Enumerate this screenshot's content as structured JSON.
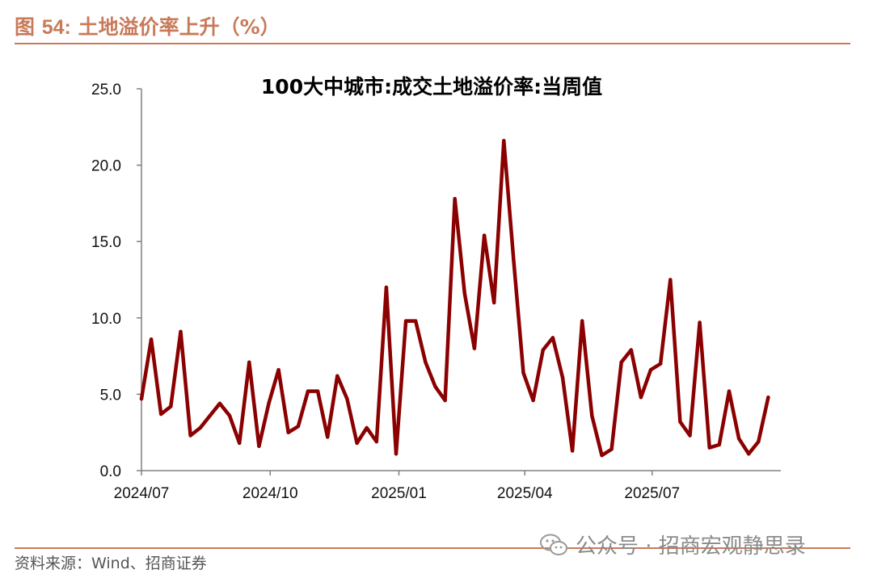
{
  "figure": {
    "label_prefix": "图 ",
    "label_number": "54:",
    "caption": " 土地溢价率上升（%）",
    "source": "资料来源：Wind、招商证券",
    "watermark": "公众号 · 招商宏观静思录",
    "watermark_icon": "wechat-icon"
  },
  "chart_data": {
    "type": "line",
    "title": "100大中城市:成交土地溢价率:当周值",
    "xlabel": "",
    "ylabel": "",
    "ylim": [
      0,
      25
    ],
    "yticks": [
      "0.0",
      "5.0",
      "10.0",
      "15.0",
      "20.0",
      "25.0"
    ],
    "xticks": [
      "2024/07",
      "2024/10",
      "2025/01",
      "2025/04",
      "2025/07"
    ],
    "x_range": [
      "2024-07-01",
      "2025-10-01"
    ],
    "grid": false,
    "legend": "none",
    "line_color": "#8b0000",
    "series": [
      {
        "x": [
          "2024-07-01",
          "2024-07-08",
          "2024-07-15",
          "2024-07-22",
          "2024-07-29",
          "2024-08-05",
          "2024-08-12",
          "2024-08-19",
          "2024-08-26",
          "2024-09-02",
          "2024-09-09",
          "2024-09-16",
          "2024-09-23",
          "2024-09-30",
          "2024-10-07",
          "2024-10-14",
          "2024-10-21",
          "2024-10-28",
          "2024-11-04",
          "2024-11-11",
          "2024-11-18",
          "2024-11-25",
          "2024-12-02",
          "2024-12-09",
          "2024-12-16",
          "2024-12-23",
          "2024-12-30",
          "2025-01-06",
          "2025-01-13",
          "2025-01-20",
          "2025-01-27",
          "2025-02-03",
          "2025-02-10",
          "2025-02-17",
          "2025-02-24",
          "2025-03-03",
          "2025-03-10",
          "2025-03-17",
          "2025-03-24",
          "2025-03-31",
          "2025-04-07",
          "2025-04-14",
          "2025-04-21",
          "2025-04-28",
          "2025-05-05",
          "2025-05-12",
          "2025-05-19",
          "2025-05-26",
          "2025-06-02",
          "2025-06-09",
          "2025-06-16",
          "2025-06-23",
          "2025-06-30",
          "2025-07-07",
          "2025-07-14",
          "2025-07-21",
          "2025-07-28",
          "2025-08-04",
          "2025-08-11",
          "2025-08-18",
          "2025-08-25",
          "2025-09-01",
          "2025-09-08",
          "2025-09-15",
          "2025-09-22"
        ],
        "values": [
          4.7,
          8.6,
          3.7,
          4.2,
          9.1,
          2.3,
          2.8,
          3.6,
          4.4,
          3.6,
          1.8,
          7.1,
          1.6,
          4.4,
          6.6,
          2.5,
          2.9,
          5.2,
          5.2,
          2.2,
          6.2,
          4.7,
          1.8,
          2.8,
          1.9,
          12.0,
          1.1,
          9.8,
          9.8,
          7.1,
          5.5,
          4.6,
          17.8,
          11.6,
          8.0,
          15.4,
          11.0,
          21.6,
          13.8,
          6.4,
          4.6,
          7.9,
          8.7,
          6.1,
          1.3,
          9.8,
          3.6,
          1.0,
          1.4,
          7.1,
          7.9,
          4.8,
          6.6,
          7.0,
          12.5,
          3.2,
          2.3,
          9.7,
          1.5,
          1.7,
          5.2,
          2.1,
          1.1,
          1.9,
          4.8
        ]
      }
    ]
  }
}
